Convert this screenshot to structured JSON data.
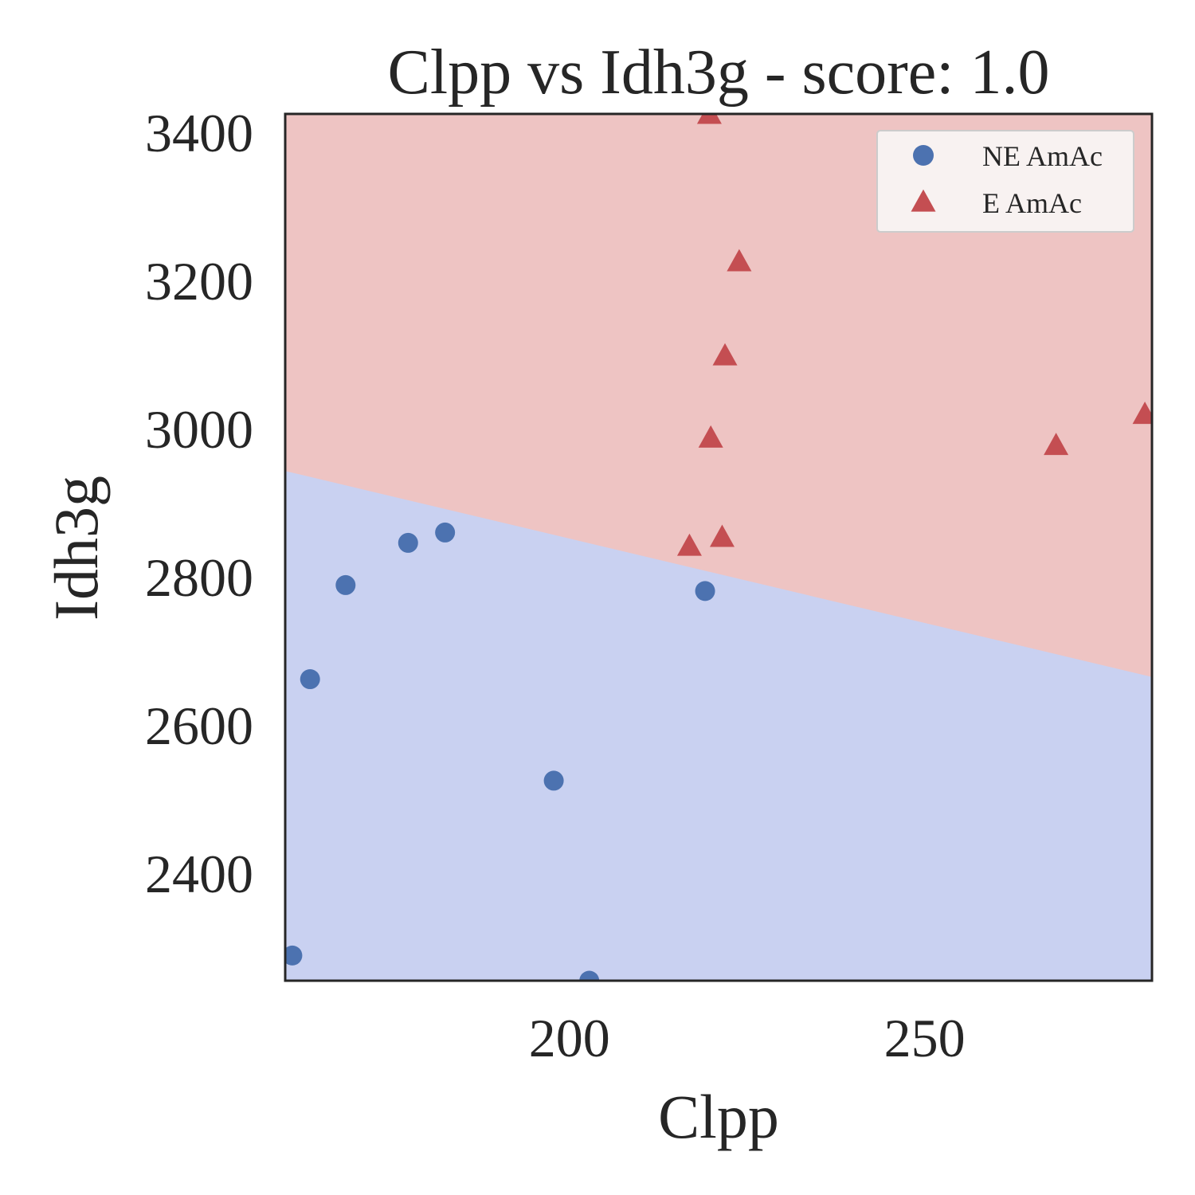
{
  "chart_data": {
    "type": "scatter",
    "title": "Clpp vs Idh3g - score: 1.0",
    "xlabel": "Clpp",
    "ylabel": "Idh3g",
    "xlim": [
      160,
      282
    ],
    "ylim": [
      2255,
      3425
    ],
    "xticks": [
      200,
      250
    ],
    "yticks": [
      2400,
      2600,
      2800,
      3000,
      3200,
      3400
    ],
    "grid": false,
    "legend_position": "top-right",
    "decision_boundary": {
      "x": [
        160,
        282
      ],
      "y": [
        2943,
        2665
      ],
      "below_region_color": "#c9d1f1",
      "above_region_color": "#eec4c3"
    },
    "series": [
      {
        "name": "NE AmAc",
        "marker": "circle",
        "color": "#4c72b0",
        "points": [
          {
            "x": 161,
            "y": 2289
          },
          {
            "x": 163.5,
            "y": 2662
          },
          {
            "x": 168.5,
            "y": 2789
          },
          {
            "x": 177.3,
            "y": 2846
          },
          {
            "x": 182.5,
            "y": 2860
          },
          {
            "x": 197.8,
            "y": 2525
          },
          {
            "x": 202.8,
            "y": 2255
          },
          {
            "x": 219.1,
            "y": 2781
          }
        ]
      },
      {
        "name": "E AmAc",
        "marker": "triangle",
        "color": "#c44e52",
        "points": [
          {
            "x": 219.7,
            "y": 3423
          },
          {
            "x": 223.9,
            "y": 3224
          },
          {
            "x": 221.9,
            "y": 3097
          },
          {
            "x": 219.9,
            "y": 2986
          },
          {
            "x": 221.5,
            "y": 2852
          },
          {
            "x": 216.9,
            "y": 2840
          },
          {
            "x": 268.5,
            "y": 2976
          },
          {
            "x": 281,
            "y": 3018
          }
        ]
      }
    ]
  }
}
